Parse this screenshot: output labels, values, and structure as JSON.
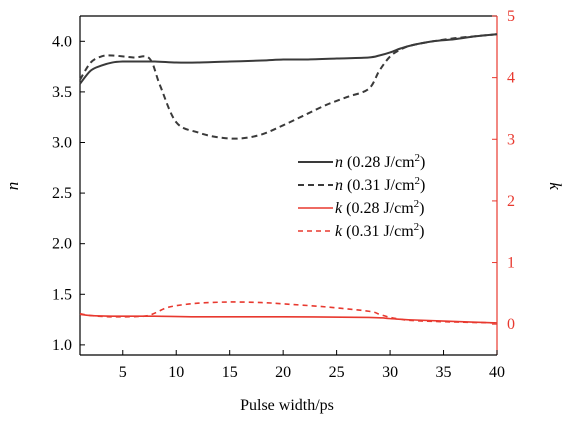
{
  "chart_data": {
    "type": "line",
    "xlabel": "Pulse width/ps",
    "ylabel_left": "n",
    "ylabel_right": "k",
    "xlim": [
      1,
      40
    ],
    "xticks": [
      5,
      10,
      15,
      20,
      25,
      30,
      35,
      40
    ],
    "ylim_left": [
      0.9,
      4.25
    ],
    "yticks_left": [
      "1.0",
      "1.5",
      "2.0",
      "2.5",
      "3.0",
      "3.5",
      "4.0"
    ],
    "ylim_right": [
      -0.5,
      5
    ],
    "yticks_right": [
      "0",
      "1",
      "2",
      "3",
      "4",
      "5"
    ],
    "grid": false,
    "legend_position": "center-right",
    "colors": {
      "n_axis": "#000000",
      "k_axis": "#e8392f",
      "n_series": "#3a3a3a",
      "k_series": "#e8392f"
    },
    "series": [
      {
        "name": "n (0.28 J/cm²)",
        "label_symbol": "n",
        "label_text": " (0.28 J/cm",
        "label_sup": "2",
        "label_end": ")",
        "axis": "left",
        "style": "solid",
        "color": "#3a3a3a",
        "x": [
          1,
          2,
          3,
          4,
          5,
          6,
          8,
          10,
          12,
          15,
          18,
          20,
          22,
          25,
          28,
          29,
          30,
          31,
          32,
          34,
          36,
          38,
          40
        ],
        "y": [
          3.58,
          3.71,
          3.76,
          3.79,
          3.8,
          3.8,
          3.8,
          3.79,
          3.79,
          3.8,
          3.81,
          3.82,
          3.82,
          3.83,
          3.84,
          3.86,
          3.89,
          3.93,
          3.96,
          4.0,
          4.02,
          4.05,
          4.07
        ]
      },
      {
        "name": "n (0.31 J/cm²)",
        "label_symbol": "n",
        "label_text": " (0.31 J/cm",
        "label_sup": "2",
        "label_end": ")",
        "axis": "left",
        "style": "dashed",
        "color": "#3a3a3a",
        "x": [
          1,
          2,
          3,
          4,
          6,
          7.5,
          8.5,
          10,
          12,
          14,
          16,
          18,
          20,
          22,
          24,
          26,
          28,
          29,
          30,
          31,
          32,
          34,
          36,
          38,
          40
        ],
        "y": [
          3.62,
          3.79,
          3.85,
          3.86,
          3.84,
          3.83,
          3.56,
          3.2,
          3.1,
          3.05,
          3.04,
          3.08,
          3.17,
          3.27,
          3.37,
          3.45,
          3.53,
          3.71,
          3.85,
          3.92,
          3.96,
          4.0,
          4.03,
          4.05,
          4.07
        ]
      },
      {
        "name": "k (0.28 J/cm²)",
        "label_symbol": "k",
        "label_text": " (0.28 J/cm",
        "label_sup": "2",
        "label_end": ")",
        "axis": "right",
        "style": "solid",
        "color": "#e8392f",
        "x": [
          1,
          2,
          4,
          8,
          12,
          20,
          28,
          30,
          32,
          35,
          40
        ],
        "y": [
          0.16,
          0.14,
          0.13,
          0.13,
          0.12,
          0.12,
          0.11,
          0.09,
          0.07,
          0.05,
          0.02
        ]
      },
      {
        "name": "k (0.31 J/cm²)",
        "label_symbol": "k",
        "label_text": " (0.31 J/cm",
        "label_sup": "2",
        "label_end": ")",
        "axis": "right",
        "style": "dashed",
        "color": "#e8392f",
        "x": [
          1,
          2,
          4,
          7,
          8,
          9,
          10,
          12,
          15,
          18,
          20,
          24,
          28,
          29,
          30,
          31,
          32,
          35,
          40
        ],
        "y": [
          0.17,
          0.14,
          0.12,
          0.13,
          0.18,
          0.26,
          0.3,
          0.34,
          0.36,
          0.35,
          0.33,
          0.28,
          0.21,
          0.16,
          0.11,
          0.08,
          0.06,
          0.04,
          0.02
        ]
      }
    ]
  }
}
